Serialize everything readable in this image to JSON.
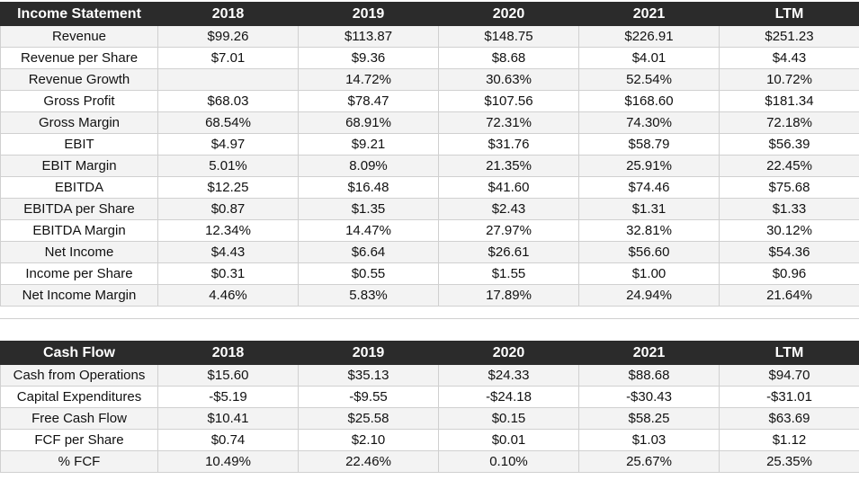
{
  "income": {
    "headers": [
      "Income Statement",
      "2018",
      "2019",
      "2020",
      "2021",
      "LTM"
    ],
    "rows": [
      [
        "Revenue",
        "$99.26",
        "$113.87",
        "$148.75",
        "$226.91",
        "$251.23"
      ],
      [
        "Revenue per Share",
        "$7.01",
        "$9.36",
        "$8.68",
        "$4.01",
        "$4.43"
      ],
      [
        "Revenue Growth",
        "",
        "14.72%",
        "30.63%",
        "52.54%",
        "10.72%"
      ],
      [
        "Gross Profit",
        "$68.03",
        "$78.47",
        "$107.56",
        "$168.60",
        "$181.34"
      ],
      [
        "Gross Margin",
        "68.54%",
        "68.91%",
        "72.31%",
        "74.30%",
        "72.18%"
      ],
      [
        "EBIT",
        "$4.97",
        "$9.21",
        "$31.76",
        "$58.79",
        "$56.39"
      ],
      [
        "EBIT Margin",
        "5.01%",
        "8.09%",
        "21.35%",
        "25.91%",
        "22.45%"
      ],
      [
        "EBITDA",
        "$12.25",
        "$16.48",
        "$41.60",
        "$74.46",
        "$75.68"
      ],
      [
        "EBITDA per Share",
        "$0.87",
        "$1.35",
        "$2.43",
        "$1.31",
        "$1.33"
      ],
      [
        "EBITDA Margin",
        "12.34%",
        "14.47%",
        "27.97%",
        "32.81%",
        "30.12%"
      ],
      [
        "Net Income",
        "$4.43",
        "$6.64",
        "$26.61",
        "$56.60",
        "$54.36"
      ],
      [
        "Income per Share",
        "$0.31",
        "$0.55",
        "$1.55",
        "$1.00",
        "$0.96"
      ],
      [
        "Net Income Margin",
        "4.46%",
        "5.83%",
        "17.89%",
        "24.94%",
        "21.64%"
      ]
    ]
  },
  "cashflow": {
    "headers": [
      "Cash Flow",
      "2018",
      "2019",
      "2020",
      "2021",
      "LTM"
    ],
    "rows": [
      [
        "Cash from Operations",
        "$15.60",
        "$35.13",
        "$24.33",
        "$88.68",
        "$94.70"
      ],
      [
        "Capital Expenditures",
        "-$5.19",
        "-$9.55",
        "-$24.18",
        "-$30.43",
        "-$31.01"
      ],
      [
        "Free Cash Flow",
        "$10.41",
        "$25.58",
        "$0.15",
        "$58.25",
        "$63.69"
      ],
      [
        "FCF per Share",
        "$0.74",
        "$2.10",
        "$0.01",
        "$1.03",
        "$1.12"
      ],
      [
        "% FCF",
        "10.49%",
        "22.46%",
        "0.10%",
        "25.67%",
        "25.35%"
      ]
    ]
  }
}
